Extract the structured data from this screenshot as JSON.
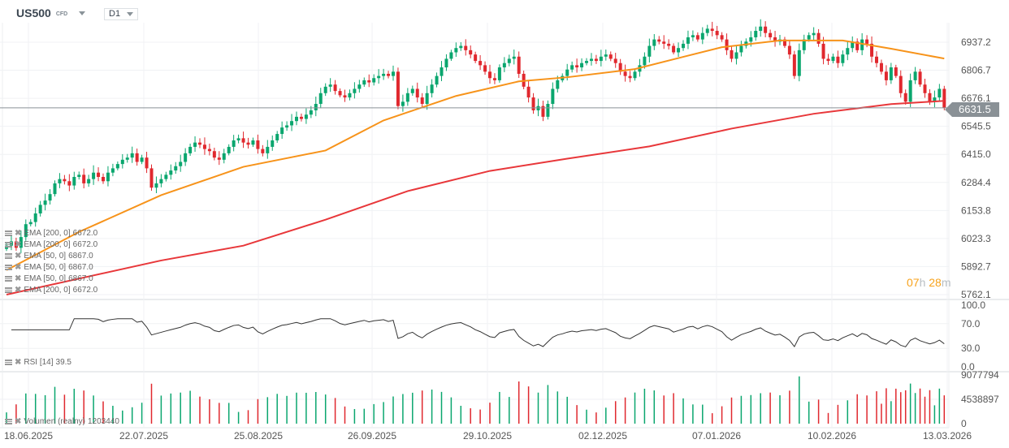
{
  "header": {
    "symbol": "US500",
    "type": "CFD",
    "timeframe": "D1"
  },
  "current_price": "6631.5",
  "countdown": {
    "hours": "07",
    "h": "h",
    "minutes": "28",
    "m": "m"
  },
  "legends": [
    {
      "label": "EMA [200, 0]",
      "value": "6672.0"
    },
    {
      "label": "EMA [200, 0]",
      "value": "6672.0"
    },
    {
      "label": "EMA [50, 0]",
      "value": "6867.0"
    },
    {
      "label": "EMA [50, 0]",
      "value": "6867.0"
    },
    {
      "label": "EMA [50, 0]",
      "value": "6867.0"
    },
    {
      "label": "EMA [200, 0]",
      "value": "6672.0"
    }
  ],
  "rsi_legend": {
    "label": "RSI [14]",
    "value": "39.5"
  },
  "volume_legend": {
    "label": "Volumen (realny)",
    "value": "1203440"
  },
  "colors": {
    "up": "#0aa66e",
    "down": "#e0282e",
    "ema50": "#f7931a",
    "ema200": "#e8373a",
    "price_line": "#8a9196"
  },
  "chart_data": {
    "type": "candlestick",
    "price_axis": [
      "6937.2",
      "6806.7",
      "6676.1",
      "6545.5",
      "6415.0",
      "6284.4",
      "6153.8",
      "6023.3",
      "5892.7",
      "5762.1"
    ],
    "rsi_axis": [
      "100.0",
      "70.0",
      "30.0",
      "0.0"
    ],
    "volume_axis": [
      "9077794",
      "4538897",
      "0"
    ],
    "date_axis": [
      "18.06.2025",
      "22.07.2025",
      "25.08.2025",
      "26.09.2025",
      "29.10.2025",
      "02.12.2025",
      "07.01.2026",
      "10.02.2026",
      "13.03.2026"
    ],
    "closes": [
      5990,
      6010,
      5980,
      6030,
      6090,
      6100,
      6140,
      6180,
      6200,
      6230,
      6280,
      6300,
      6290,
      6270,
      6310,
      6320,
      6280,
      6300,
      6330,
      6310,
      6290,
      6330,
      6350,
      6370,
      6390,
      6400,
      6420,
      6380,
      6400,
      6350,
      6260,
      6280,
      6300,
      6320,
      6340,
      6360,
      6380,
      6420,
      6450,
      6470,
      6460,
      6440,
      6430,
      6400,
      6390,
      6420,
      6450,
      6480,
      6490,
      6470,
      6460,
      6480,
      6440,
      6420,
      6450,
      6480,
      6510,
      6540,
      6550,
      6570,
      6590,
      6580,
      6600,
      6620,
      6650,
      6700,
      6730,
      6740,
      6710,
      6690,
      6680,
      6700,
      6720,
      6740,
      6760,
      6750,
      6770,
      6780,
      6790,
      6780,
      6800,
      6640,
      6660,
      6700,
      6720,
      6680,
      6650,
      6700,
      6740,
      6780,
      6820,
      6860,
      6890,
      6910,
      6920,
      6900,
      6880,
      6850,
      6830,
      6800,
      6770,
      6760,
      6820,
      6840,
      6860,
      6870,
      6790,
      6730,
      6680,
      6620,
      6640,
      6590,
      6650,
      6720,
      6760,
      6780,
      6810,
      6830,
      6820,
      6840,
      6850,
      6860,
      6850,
      6870,
      6880,
      6860,
      6840,
      6800,
      6780,
      6770,
      6800,
      6830,
      6870,
      6920,
      6950,
      6940,
      6930,
      6920,
      6890,
      6910,
      6930,
      6960,
      6970,
      6950,
      6980,
      7000,
      6990,
      6970,
      6950,
      6900,
      6860,
      6890,
      6920,
      6940,
      6960,
      6990,
      7010,
      6980,
      6960,
      6940,
      6950,
      6920,
      6880,
      6780,
      6900,
      6950,
      6970,
      6980,
      6930,
      6860,
      6850,
      6870,
      6840,
      6880,
      6910,
      6940,
      6900,
      6950,
      6930,
      6870,
      6840,
      6800,
      6760,
      6820,
      6780,
      6700,
      6660,
      6760,
      6800,
      6740,
      6700,
      6660,
      6680,
      6720,
      6631.5
    ],
    "ema50": [
      [
        0,
        5876
      ],
      [
        15,
        6054
      ],
      [
        32,
        6225
      ],
      [
        49,
        6357
      ],
      [
        66,
        6433
      ],
      [
        78,
        6573
      ],
      [
        83,
        6611
      ],
      [
        93,
        6687
      ],
      [
        106,
        6755
      ],
      [
        116,
        6774
      ],
      [
        130,
        6812
      ],
      [
        140,
        6869
      ],
      [
        148,
        6914
      ],
      [
        160,
        6945
      ],
      [
        173,
        6945
      ],
      [
        183,
        6907
      ],
      [
        194,
        6861
      ]
    ],
    "ema200": [
      [
        0,
        5762
      ],
      [
        32,
        5921
      ],
      [
        49,
        5990
      ],
      [
        66,
        6111
      ],
      [
        83,
        6244
      ],
      [
        100,
        6338
      ],
      [
        116,
        6395
      ],
      [
        133,
        6452
      ],
      [
        150,
        6535
      ],
      [
        167,
        6604
      ],
      [
        183,
        6649
      ],
      [
        194,
        6664
      ]
    ],
    "price_range": [
      5762.1,
      6937.2
    ],
    "volume_max": 9077794
  }
}
